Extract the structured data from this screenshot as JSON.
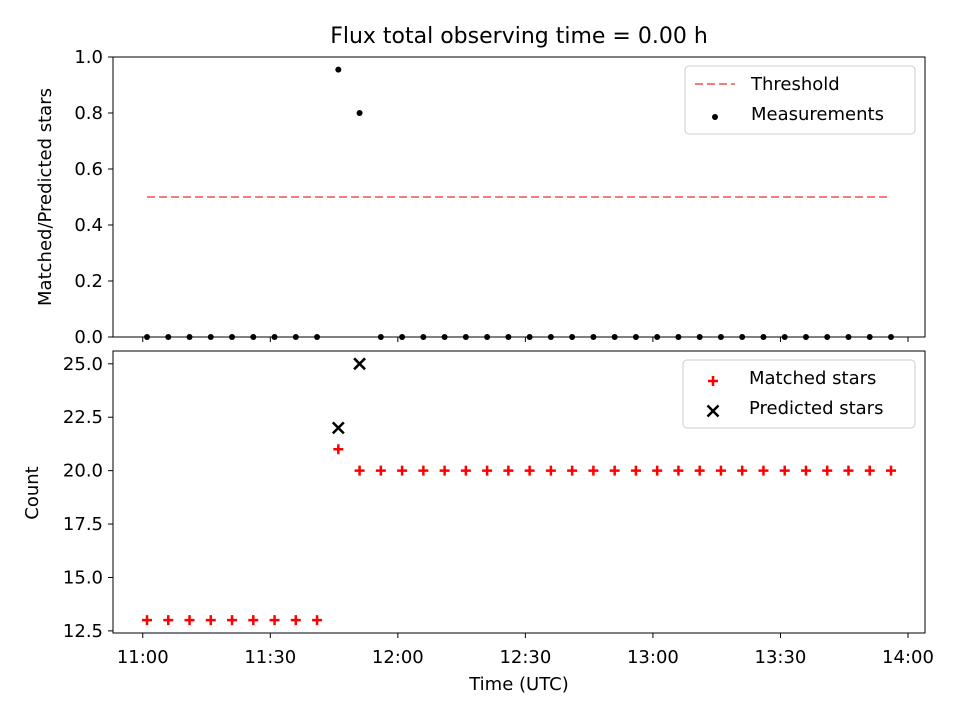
{
  "chart_data": [
    {
      "type": "scatter",
      "title": "Flux total observing time = 0.00 h",
      "xlabel": "",
      "ylabel": "Matched/Predicted stars",
      "xlim": [
        "10:53",
        "14:04"
      ],
      "ylim": [
        0,
        1
      ],
      "yticks": [
        "0.0",
        "0.2",
        "0.4",
        "0.6",
        "0.8",
        "1.0"
      ],
      "legend_position": "top-right",
      "threshold": {
        "name": "Threshold",
        "value": 0.5,
        "x_start": "11:01",
        "x_end": "13:56",
        "color": "#f08080",
        "style": "dashed"
      },
      "series": [
        {
          "name": "Measurements",
          "color": "#000000",
          "marker": "dot",
          "x": [
            "11:01",
            "11:06",
            "11:11",
            "11:16",
            "11:21",
            "11:26",
            "11:31",
            "11:36",
            "11:41",
            "11:46",
            "11:51",
            "11:56",
            "12:01",
            "12:06",
            "12:11",
            "12:16",
            "12:21",
            "12:26",
            "12:31",
            "12:36",
            "12:41",
            "12:46",
            "12:51",
            "12:56",
            "13:01",
            "13:06",
            "13:11",
            "13:16",
            "13:21",
            "13:26",
            "13:31",
            "13:36",
            "13:41",
            "13:46",
            "13:51",
            "13:56"
          ],
          "y": [
            0,
            0,
            0,
            0,
            0,
            0,
            0,
            0,
            0,
            0.955,
            0.8,
            0,
            0,
            0,
            0,
            0,
            0,
            0,
            0,
            0,
            0,
            0,
            0,
            0,
            0,
            0,
            0,
            0,
            0,
            0,
            0,
            0,
            0,
            0,
            0,
            0
          ]
        }
      ]
    },
    {
      "type": "scatter",
      "title": "",
      "xlabel": "Time (UTC)",
      "ylabel": "Count",
      "xlim": [
        "10:53",
        "14:04"
      ],
      "ylim": [
        12.4,
        25.6
      ],
      "xticks": [
        "11:00",
        "11:30",
        "12:00",
        "12:30",
        "13:00",
        "13:30",
        "14:00"
      ],
      "yticks": [
        "12.5",
        "15.0",
        "17.5",
        "20.0",
        "22.5",
        "25.0"
      ],
      "legend_position": "top-right",
      "series": [
        {
          "name": "Matched stars",
          "color": "#ff0000",
          "marker": "plus",
          "x": [
            "11:01",
            "11:06",
            "11:11",
            "11:16",
            "11:21",
            "11:26",
            "11:31",
            "11:36",
            "11:41",
            "11:46",
            "11:51",
            "11:56",
            "12:01",
            "12:06",
            "12:11",
            "12:16",
            "12:21",
            "12:26",
            "12:31",
            "12:36",
            "12:41",
            "12:46",
            "12:51",
            "12:56",
            "13:01",
            "13:06",
            "13:11",
            "13:16",
            "13:21",
            "13:26",
            "13:31",
            "13:36",
            "13:41",
            "13:46",
            "13:51",
            "13:56"
          ],
          "y": [
            13,
            13,
            13,
            13,
            13,
            13,
            13,
            13,
            13,
            21,
            20,
            20,
            20,
            20,
            20,
            20,
            20,
            20,
            20,
            20,
            20,
            20,
            20,
            20,
            20,
            20,
            20,
            20,
            20,
            20,
            20,
            20,
            20,
            20,
            20,
            20
          ]
        },
        {
          "name": "Predicted stars",
          "color": "#000000",
          "marker": "x",
          "x": [
            "11:46",
            "11:51"
          ],
          "y": [
            22,
            25
          ]
        }
      ]
    }
  ]
}
